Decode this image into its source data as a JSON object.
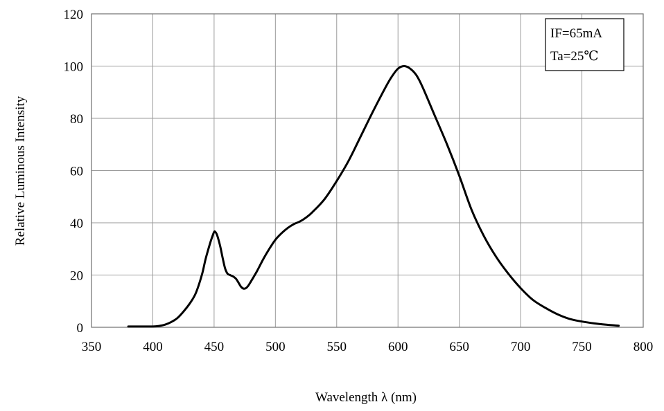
{
  "chart_data": {
    "type": "line",
    "title": "",
    "xlabel": "Wavelength λ  (nm)",
    "ylabel": "Relative Luminous Intensity",
    "xlim": [
      350,
      800
    ],
    "ylim": [
      0,
      120
    ],
    "x_ticks": [
      350,
      400,
      450,
      500,
      550,
      600,
      650,
      700,
      750,
      800
    ],
    "y_ticks": [
      0,
      20,
      40,
      60,
      80,
      100,
      120
    ],
    "grid": true,
    "legend": {
      "placement": "top-right",
      "lines": [
        "IF=65mA",
        "Ta=25℃"
      ]
    },
    "colors": {
      "curve": "#000000",
      "grid": "#9a9a9a",
      "frame": "#6e6e6e"
    },
    "series": [
      {
        "x": [
          380,
          390,
          400,
          405,
          410,
          415,
          420,
          425,
          430,
          435,
          440,
          443,
          446,
          448,
          450,
          451,
          452,
          453,
          455,
          457,
          459,
          461,
          463,
          466,
          468,
          470,
          472,
          474,
          476,
          478,
          480,
          485,
          490,
          495,
          500,
          505,
          510,
          515,
          520,
          525,
          530,
          540,
          550,
          560,
          570,
          580,
          590,
          595,
          600,
          605,
          610,
          615,
          620,
          630,
          640,
          650,
          660,
          670,
          680,
          690,
          700,
          710,
          720,
          730,
          740,
          750,
          760,
          770,
          780
        ],
        "y": [
          0.3,
          0.3,
          0.3,
          0.5,
          1,
          2,
          3.5,
          6,
          9,
          13,
          20,
          26,
          31,
          34,
          36.5,
          36.5,
          35.8,
          34.5,
          31,
          26.5,
          22.5,
          20.5,
          20,
          19.3,
          18.5,
          17,
          15.5,
          14.8,
          15,
          16,
          17.5,
          21.5,
          26,
          30,
          33.5,
          36,
          38,
          39.5,
          40.5,
          42,
          44,
          49,
          56,
          64,
          73.5,
          83,
          92,
          96,
          99,
          100,
          99,
          96.5,
          92,
          81,
          70,
          58,
          45,
          35,
          27,
          20.5,
          15,
          10.5,
          7.5,
          5,
          3.2,
          2.2,
          1.5,
          1,
          0.6
        ]
      }
    ]
  }
}
